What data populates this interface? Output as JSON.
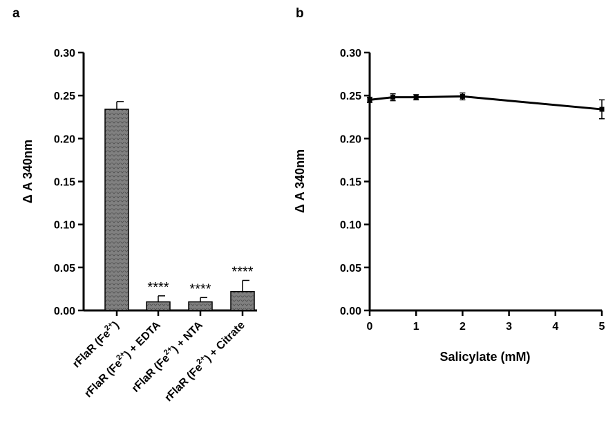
{
  "panels": {
    "a": "a",
    "b": "b"
  },
  "chart_data": [
    {
      "type": "bar",
      "panel": "a",
      "categories": [
        "rFlaR (Fe2+)",
        "rFlaR (Fe2+) + EDTA",
        "rFlaR (Fe2+) + NTA",
        "rFlaR (Fe2+) + Citrate"
      ],
      "category_labels": [
        {
          "main": "rFlaR (Fe",
          "sup": "2+",
          "tail": ")"
        },
        {
          "main": "rFlaR (Fe",
          "sup": "2+",
          "tail": ") + EDTA"
        },
        {
          "main": "rFlaR (Fe",
          "sup": "2+",
          "tail": ") + NTA"
        },
        {
          "main": "rFlaR (Fe",
          "sup": "2+",
          "tail": ") + Citrate"
        }
      ],
      "values": [
        0.234,
        0.01,
        0.01,
        0.022
      ],
      "errors": [
        0.009,
        0.007,
        0.005,
        0.013
      ],
      "annotations": [
        "",
        "****",
        "****",
        "****"
      ],
      "ylabel": "Δ A 340nm",
      "xlabel": "",
      "ylim": [
        0,
        0.3
      ],
      "yticks": [
        "0.00",
        "0.05",
        "0.10",
        "0.15",
        "0.20",
        "0.25",
        "0.30"
      ],
      "bar_color": "#808080",
      "grid": false
    },
    {
      "type": "line",
      "panel": "b",
      "x": [
        0,
        0.5,
        1,
        2,
        5
      ],
      "y": [
        0.245,
        0.248,
        0.248,
        0.249,
        0.234
      ],
      "errors": [
        0.003,
        0.004,
        0.003,
        0.004,
        0.011
      ],
      "xlabel": "Salicylate (mM)",
      "ylabel": "Δ A 340nm",
      "xlim": [
        0,
        5
      ],
      "ylim": [
        0,
        0.3
      ],
      "xticks": [
        "0",
        "1",
        "2",
        "3",
        "4",
        "5"
      ],
      "yticks": [
        "0.00",
        "0.05",
        "0.10",
        "0.15",
        "0.20",
        "0.25",
        "0.30"
      ],
      "line_color": "#000000",
      "grid": false
    }
  ]
}
